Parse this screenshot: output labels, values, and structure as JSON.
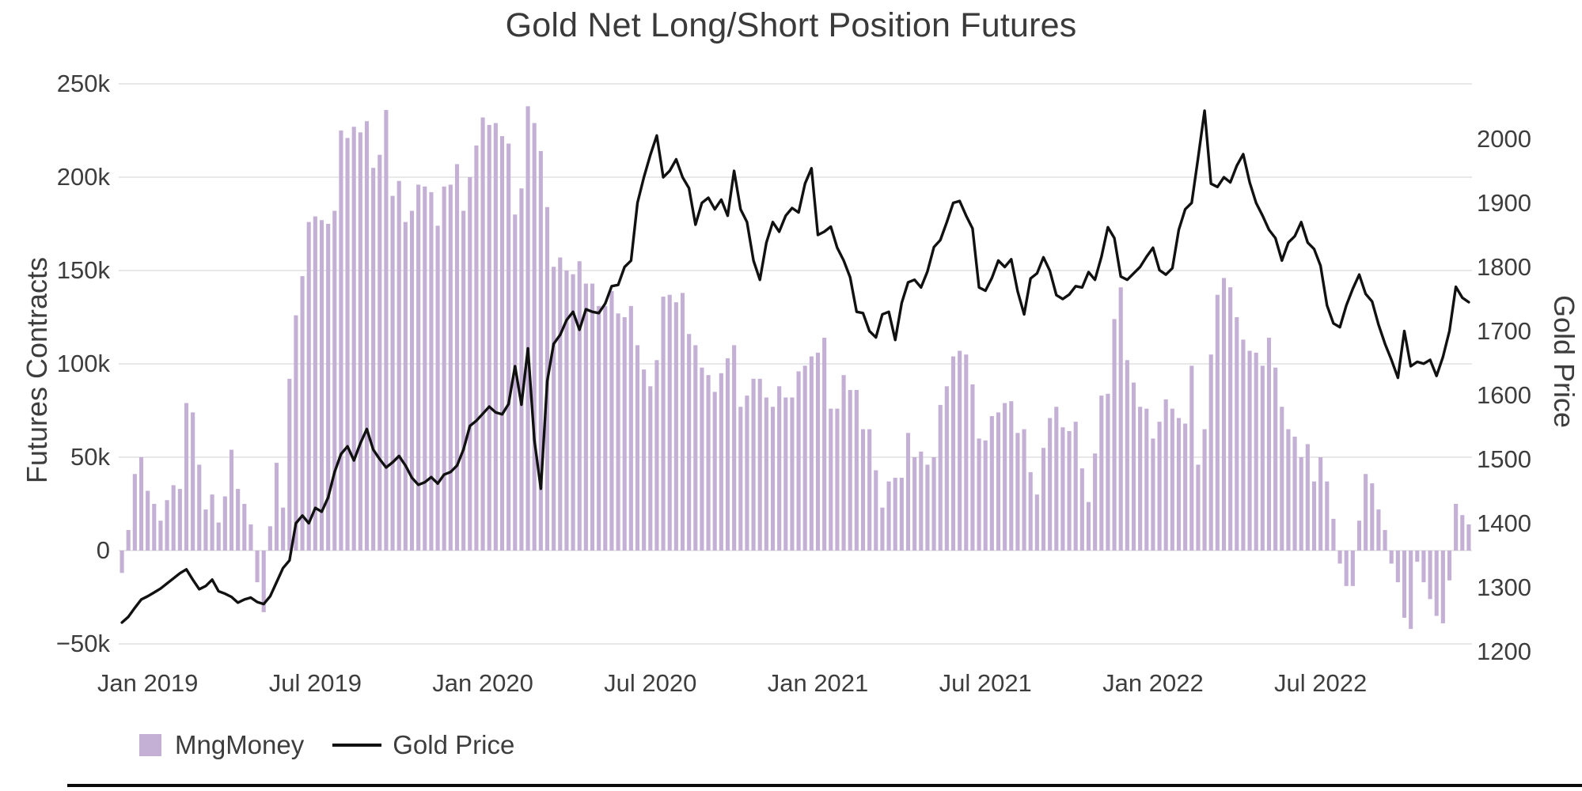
{
  "title": "Gold Net Long/Short Position Futures",
  "colors": {
    "bar": "#c5b0d5",
    "line": "#111111",
    "grid": "#e8e8e8",
    "text": "#3d3d3d"
  },
  "legend": {
    "items": [
      {
        "label": "MngMoney",
        "swatch": "square",
        "color": "#c5b0d5"
      },
      {
        "label": "Gold Price",
        "swatch": "line",
        "color": "#111111"
      }
    ]
  },
  "chart_data": {
    "type": "bar",
    "title": "Gold Net Long/Short Position Futures",
    "left_axis": {
      "label": "Futures Contracts",
      "tick_values": [
        250,
        200,
        150,
        100,
        50,
        0,
        -50
      ],
      "tick_labels": [
        "250k",
        "200k",
        "150k",
        "100k",
        "50k",
        "0",
        "−50k"
      ],
      "units": "thousands of contracts",
      "range": [
        -50,
        250
      ],
      "grid": true
    },
    "right_axis": {
      "label": "Gold Price",
      "tick_values": [
        2000,
        1900,
        1800,
        1700,
        1600,
        1500,
        1400,
        1300,
        1200
      ],
      "tick_labels": [
        "2000",
        "1900",
        "1800",
        "1700",
        "1600",
        "1500",
        "1400",
        "1300",
        "1200"
      ],
      "range": [
        1211,
        2085
      ],
      "grid": false
    },
    "x_axis": {
      "ticks": [
        {
          "index": 4,
          "label": "Jan 2019"
        },
        {
          "index": 30,
          "label": "Jul 2019"
        },
        {
          "index": 56,
          "label": "Jan 2020"
        },
        {
          "index": 82,
          "label": "Jul 2020"
        },
        {
          "index": 108,
          "label": "Jan 2021"
        },
        {
          "index": 134,
          "label": "Jul 2021"
        },
        {
          "index": 160,
          "label": "Jan 2022"
        },
        {
          "index": 186,
          "label": "Jul 2022"
        }
      ]
    },
    "legend_position": "bottom-left",
    "series": [
      {
        "name": "MngMoney",
        "type": "bar",
        "axis": "left",
        "color": "#c5b0d5",
        "unit": "k contracts",
        "values": [
          -12,
          11,
          41,
          50,
          32,
          25,
          16,
          27,
          35,
          33,
          79,
          74,
          46,
          22,
          30,
          15,
          29,
          54,
          33,
          25,
          14,
          -17,
          -33,
          13,
          47,
          23,
          92,
          126,
          147,
          176,
          179,
          177,
          175,
          182,
          225,
          221,
          227,
          224,
          230,
          205,
          212,
          236,
          190,
          198,
          176,
          182,
          196,
          195,
          192,
          174,
          195,
          196,
          207,
          182,
          200,
          217,
          232,
          228,
          229,
          222,
          218,
          180,
          194,
          238,
          229,
          214,
          184,
          152,
          157,
          150,
          148,
          155,
          143,
          143,
          131,
          131,
          139,
          127,
          125,
          131,
          110,
          97,
          88,
          102,
          136,
          137,
          133,
          138,
          116,
          110,
          98,
          94,
          85,
          95,
          103,
          110,
          77,
          83,
          92,
          92,
          82,
          77,
          88,
          82,
          82,
          96,
          99,
          104,
          106,
          114,
          76,
          76,
          94,
          86,
          86,
          65,
          65,
          43,
          23,
          37,
          39,
          39,
          63,
          50,
          53,
          46,
          50,
          78,
          88,
          104,
          107,
          105,
          89,
          60,
          59,
          72,
          74,
          79,
          80,
          63,
          65,
          42,
          30,
          55,
          71,
          77,
          66,
          64,
          69,
          44,
          26,
          52,
          83,
          84,
          124,
          141,
          102,
          90,
          77,
          76,
          60,
          69,
          81,
          76,
          71,
          68,
          99,
          46,
          65,
          105,
          137,
          146,
          141,
          125,
          113,
          107,
          106,
          99,
          114,
          98,
          77,
          65,
          61,
          50,
          57,
          37,
          50,
          37,
          17,
          -7,
          -19,
          -19,
          16,
          41,
          36,
          22,
          11,
          -7,
          -17,
          -36,
          -42,
          -6,
          -17,
          -26,
          -35,
          -39,
          -16,
          25,
          19,
          14
        ]
      },
      {
        "name": "Gold Price",
        "type": "line",
        "axis": "right",
        "color": "#111111",
        "unit": "USD/oz",
        "values": [
          1245,
          1254,
          1268,
          1281,
          1286,
          1292,
          1298,
          1306,
          1314,
          1322,
          1328,
          1312,
          1297,
          1302,
          1312,
          1294,
          1290,
          1285,
          1276,
          1281,
          1284,
          1277,
          1274,
          1286,
          1308,
          1330,
          1342,
          1400,
          1412,
          1400,
          1424,
          1418,
          1440,
          1480,
          1508,
          1520,
          1498,
          1525,
          1547,
          1515,
          1500,
          1487,
          1495,
          1505,
          1490,
          1471,
          1460,
          1464,
          1472,
          1462,
          1476,
          1480,
          1490,
          1515,
          1552,
          1560,
          1571,
          1582,
          1573,
          1570,
          1586,
          1645,
          1585,
          1673,
          1530,
          1454,
          1622,
          1680,
          1694,
          1717,
          1730,
          1702,
          1734,
          1730,
          1728,
          1743,
          1770,
          1772,
          1800,
          1810,
          1900,
          1940,
          1975,
          2005,
          1940,
          1950,
          1968,
          1940,
          1923,
          1866,
          1900,
          1908,
          1890,
          1905,
          1880,
          1950,
          1890,
          1870,
          1810,
          1780,
          1838,
          1870,
          1855,
          1880,
          1892,
          1885,
          1930,
          1954,
          1850,
          1855,
          1863,
          1830,
          1810,
          1784,
          1730,
          1728,
          1700,
          1690,
          1726,
          1730,
          1686,
          1744,
          1776,
          1780,
          1768,
          1793,
          1831,
          1842,
          1870,
          1900,
          1903,
          1880,
          1860,
          1768,
          1763,
          1783,
          1810,
          1800,
          1812,
          1762,
          1726,
          1782,
          1790,
          1815,
          1794,
          1756,
          1750,
          1757,
          1770,
          1768,
          1792,
          1780,
          1816,
          1862,
          1845,
          1785,
          1780,
          1790,
          1800,
          1816,
          1830,
          1795,
          1788,
          1798,
          1858,
          1890,
          1900,
          1970,
          2044,
          1930,
          1925,
          1940,
          1932,
          1958,
          1976,
          1932,
          1900,
          1880,
          1858,
          1845,
          1810,
          1838,
          1848,
          1870,
          1838,
          1828,
          1802,
          1740,
          1712,
          1706,
          1740,
          1766,
          1788,
          1758,
          1746,
          1710,
          1680,
          1655,
          1627,
          1700,
          1645,
          1652,
          1649,
          1655,
          1630,
          1660,
          1700,
          1769,
          1752,
          1745
        ]
      }
    ]
  }
}
